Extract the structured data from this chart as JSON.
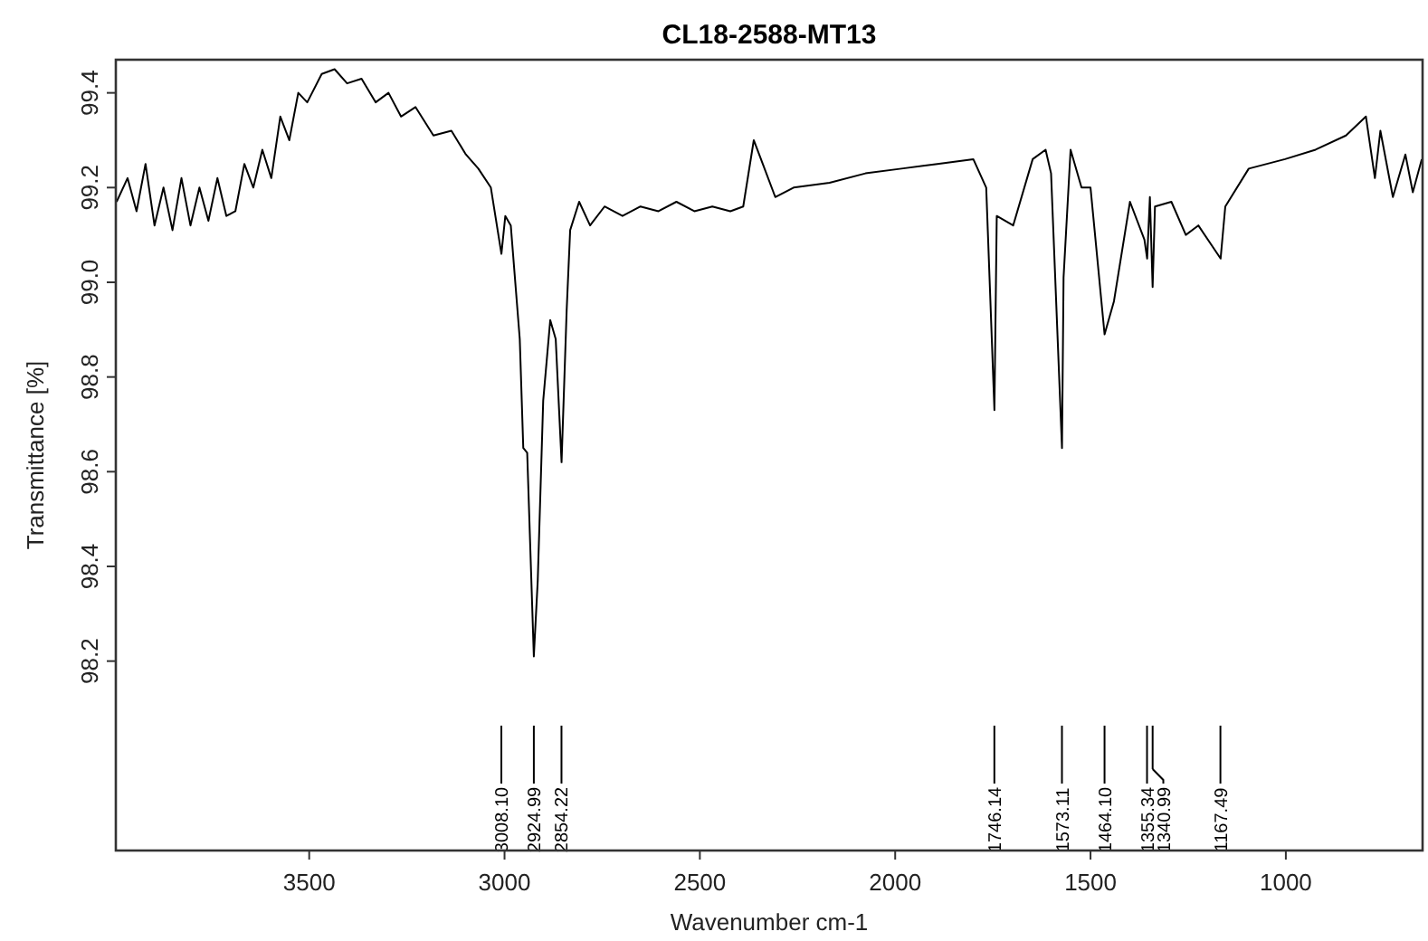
{
  "chart_data": {
    "type": "line",
    "title": "CL18-2588-MT13",
    "xlabel": "Wavenumber cm-1",
    "ylabel": "Transmittance [%]",
    "xlim": [
      3995,
      650
    ],
    "ylim": [
      97.8,
      99.47
    ],
    "xticks": [
      3500,
      3000,
      2500,
      2000,
      1500,
      1000
    ],
    "yticks": [
      98.2,
      98.4,
      98.6,
      98.8,
      {
        "value": 99,
        "label": "99.0"
      },
      99.2,
      99.4
    ],
    "grid": false,
    "series": [
      {
        "color": "#000000",
        "x": [
          3993,
          3965,
          3942,
          3919,
          3896,
          3873,
          3850,
          3827,
          3804,
          3781,
          3758,
          3735,
          3712,
          3689,
          3666,
          3643,
          3620,
          3597,
          3574,
          3551,
          3528,
          3505,
          3468,
          3435,
          3403,
          3366,
          3330,
          3297,
          3265,
          3228,
          3182,
          3136,
          3099,
          3067,
          3035,
          3008,
          2998,
          2984,
          2961,
          2952,
          2942,
          2925,
          2915,
          2901,
          2883,
          2869,
          2854,
          2841,
          2832,
          2809,
          2781,
          2744,
          2698,
          2652,
          2606,
          2560,
          2514,
          2468,
          2422,
          2389,
          2362,
          2339,
          2307,
          2260,
          2168,
          2076,
          1984,
          1892,
          1800,
          1767,
          1746,
          1740,
          1698,
          1648,
          1615,
          1601,
          1573,
          1569,
          1551,
          1523,
          1500,
          1464,
          1440,
          1399,
          1362,
          1355,
          1348,
          1341,
          1335,
          1293,
          1256,
          1224,
          1167,
          1155,
          1095,
          1002,
          924,
          846,
          795,
          772,
          758,
          726,
          694,
          675,
          652
        ],
        "values": [
          99.17,
          99.22,
          99.15,
          99.25,
          99.12,
          99.2,
          99.11,
          99.22,
          99.12,
          99.2,
          99.13,
          99.22,
          99.14,
          99.15,
          99.25,
          99.2,
          99.28,
          99.22,
          99.35,
          99.3,
          99.4,
          99.38,
          99.44,
          99.45,
          99.42,
          99.43,
          99.38,
          99.4,
          99.35,
          99.37,
          99.31,
          99.32,
          99.27,
          99.24,
          99.2,
          99.06,
          99.14,
          99.12,
          98.88,
          98.65,
          98.64,
          98.21,
          98.37,
          98.75,
          98.92,
          98.88,
          98.62,
          98.94,
          99.11,
          99.17,
          99.12,
          99.16,
          99.14,
          99.16,
          99.15,
          99.17,
          99.15,
          99.16,
          99.15,
          99.16,
          99.3,
          99.25,
          99.18,
          99.2,
          99.21,
          99.23,
          99.24,
          99.25,
          99.26,
          99.2,
          98.73,
          99.14,
          99.12,
          99.26,
          99.28,
          99.23,
          98.65,
          99.01,
          99.28,
          99.2,
          99.2,
          98.89,
          98.96,
          99.17,
          99.09,
          99.05,
          99.18,
          98.99,
          99.16,
          99.17,
          99.1,
          99.12,
          99.05,
          99.16,
          99.24,
          99.26,
          99.28,
          99.31,
          99.35,
          99.22,
          99.32,
          99.18,
          99.27,
          99.19,
          99.26
        ]
      }
    ],
    "ref_lines": [
      {
        "axis": "x",
        "value": 3008.1,
        "label": "3008.10"
      },
      {
        "axis": "x",
        "value": 2924.99,
        "label": "2924.99"
      },
      {
        "axis": "x",
        "value": 2854.22,
        "label": "2854.22"
      },
      {
        "axis": "x",
        "value": 1746.14,
        "label": "1746.14"
      },
      {
        "axis": "x",
        "value": 1573.11,
        "label": "1573.11"
      },
      {
        "axis": "x",
        "value": 1464.1,
        "label": "1464.10"
      },
      {
        "axis": "x",
        "value": 1355.34,
        "label": "1355.34"
      },
      {
        "axis": "x",
        "value": 1340.99,
        "label": "1340.99"
      },
      {
        "axis": "x",
        "value": 1167.49,
        "label": "1167.49"
      }
    ]
  }
}
